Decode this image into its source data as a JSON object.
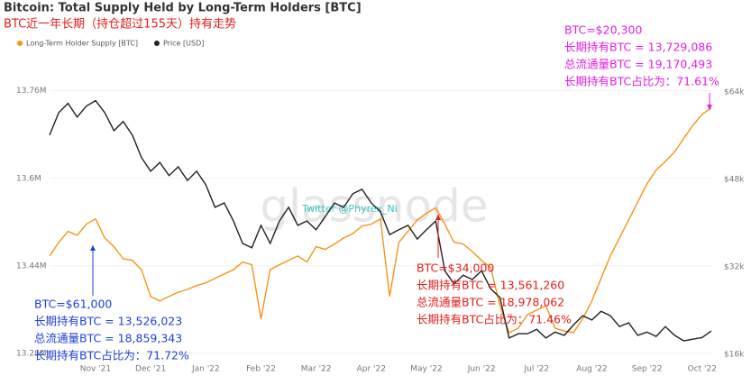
{
  "chart_data": {
    "type": "line",
    "title": "Bitcoin: Total Supply Held by Long-Term Holders [BTC]",
    "subtitle": "BTC近一年长期（持仓超过155天）持有走势",
    "watermark": "glassnode",
    "credit": "Twitter @Phyrex_Ni",
    "categories": [
      null,
      null,
      null,
      null,
      null,
      "Nov '21",
      null,
      null,
      null,
      null,
      null,
      "Dec '21",
      null,
      null,
      null,
      null,
      null,
      "Jan '22",
      null,
      null,
      null,
      null,
      null,
      "Feb '22",
      null,
      null,
      null,
      null,
      null,
      "Mar '22",
      null,
      null,
      null,
      null,
      null,
      "Apr '22",
      null,
      null,
      null,
      null,
      null,
      "May '22",
      null,
      null,
      null,
      null,
      null,
      "Jun '22",
      null,
      null,
      null,
      null,
      null,
      "Jul '22",
      null,
      null,
      null,
      null,
      null,
      "Aug '22",
      null,
      null,
      null,
      null,
      null,
      "Sep '22",
      null,
      null,
      null,
      null,
      null,
      "Oct '22",
      null
    ],
    "series": [
      {
        "name": "Long-Term Holder Supply [BTC]",
        "color": "#f7931a",
        "values": [
          13458000,
          13483000,
          13503000,
          13496000,
          13516000,
          13526000,
          13491000,
          13475000,
          13453000,
          13450000,
          13433000,
          13384000,
          13376000,
          13384000,
          13392000,
          13397000,
          13404000,
          13409000,
          13417000,
          13425000,
          13433000,
          13447000,
          13442000,
          13343000,
          13433000,
          13442000,
          13450000,
          13458000,
          13447000,
          13475000,
          13470000,
          13480000,
          13491000,
          13499000,
          13513000,
          13516000,
          13526000,
          13384000,
          13483000,
          13503000,
          13524000,
          13536000,
          13546000,
          13516000,
          13483000,
          13480000,
          13466000,
          13450000,
          13437000,
          13367000,
          13318000,
          13326000,
          13351000,
          13359000,
          13367000,
          13326000,
          13321000,
          13318000,
          13343000,
          13376000,
          13417000,
          13458000,
          13491000,
          13524000,
          13557000,
          13590000,
          13615000,
          13631000,
          13648000,
          13673000,
          13697000,
          13717000,
          13729000
        ]
      },
      {
        "name": "Price [USD]",
        "color": "#222222",
        "axis": "y2",
        "values": [
          56100,
          60200,
          61900,
          59400,
          61400,
          62400,
          60200,
          56900,
          58600,
          56100,
          52000,
          49500,
          51100,
          48700,
          50300,
          47800,
          49500,
          47000,
          42900,
          43700,
          40400,
          36300,
          35500,
          39600,
          36300,
          40400,
          42900,
          39600,
          40400,
          38800,
          41200,
          43700,
          42900,
          45400,
          46200,
          43700,
          42100,
          37900,
          38800,
          39600,
          37100,
          38800,
          40400,
          31300,
          28900,
          30500,
          29700,
          31300,
          28000,
          26400,
          19000,
          19800,
          19800,
          20600,
          19000,
          20100,
          19500,
          21400,
          23100,
          22300,
          23900,
          23100,
          21100,
          21800,
          19500,
          20100,
          19300,
          21100,
          19500,
          18500,
          18800,
          19100,
          20300
        ]
      }
    ],
    "ylim": [
      13270000,
      13860000
    ],
    "yticks": [
      {
        "value": 13280000,
        "label": "13.28M"
      },
      {
        "value": 13440000,
        "label": "13.44M"
      },
      {
        "value": 13600000,
        "label": "13.6M"
      },
      {
        "value": 13760000,
        "label": "13.76M"
      }
    ],
    "y2lim": [
      15200,
      74200
    ],
    "y2ticks": [
      {
        "value": 16000,
        "label": "$16k"
      },
      {
        "value": 32000,
        "label": "$32k"
      },
      {
        "value": 48000,
        "label": "$48k"
      },
      {
        "value": 64000,
        "label": "$64k"
      }
    ],
    "legend": "top-left",
    "annotations": [
      {
        "color": "#1f3fd6",
        "lines": [
          "BTC=$61,000",
          "长期持有BTC = 13,526,023",
          "总流通量BTC = 18,859,343",
          "长期持有BTC占比为：71.72%"
        ]
      },
      {
        "color": "#e0201c",
        "lines": [
          "BTC=$34,000",
          "长期持有BTC = 13,561,260",
          "总流通量BTC = 18,978,062",
          "长期持有BTC占比为：71.46%"
        ]
      },
      {
        "color": "#e020e0",
        "lines": [
          "BTC=$20,300",
          "长期持有BTC = 13,729,086",
          "总流通量BTC = 19,170,493",
          "长期持有BTC占比为：71.61%"
        ]
      }
    ]
  }
}
